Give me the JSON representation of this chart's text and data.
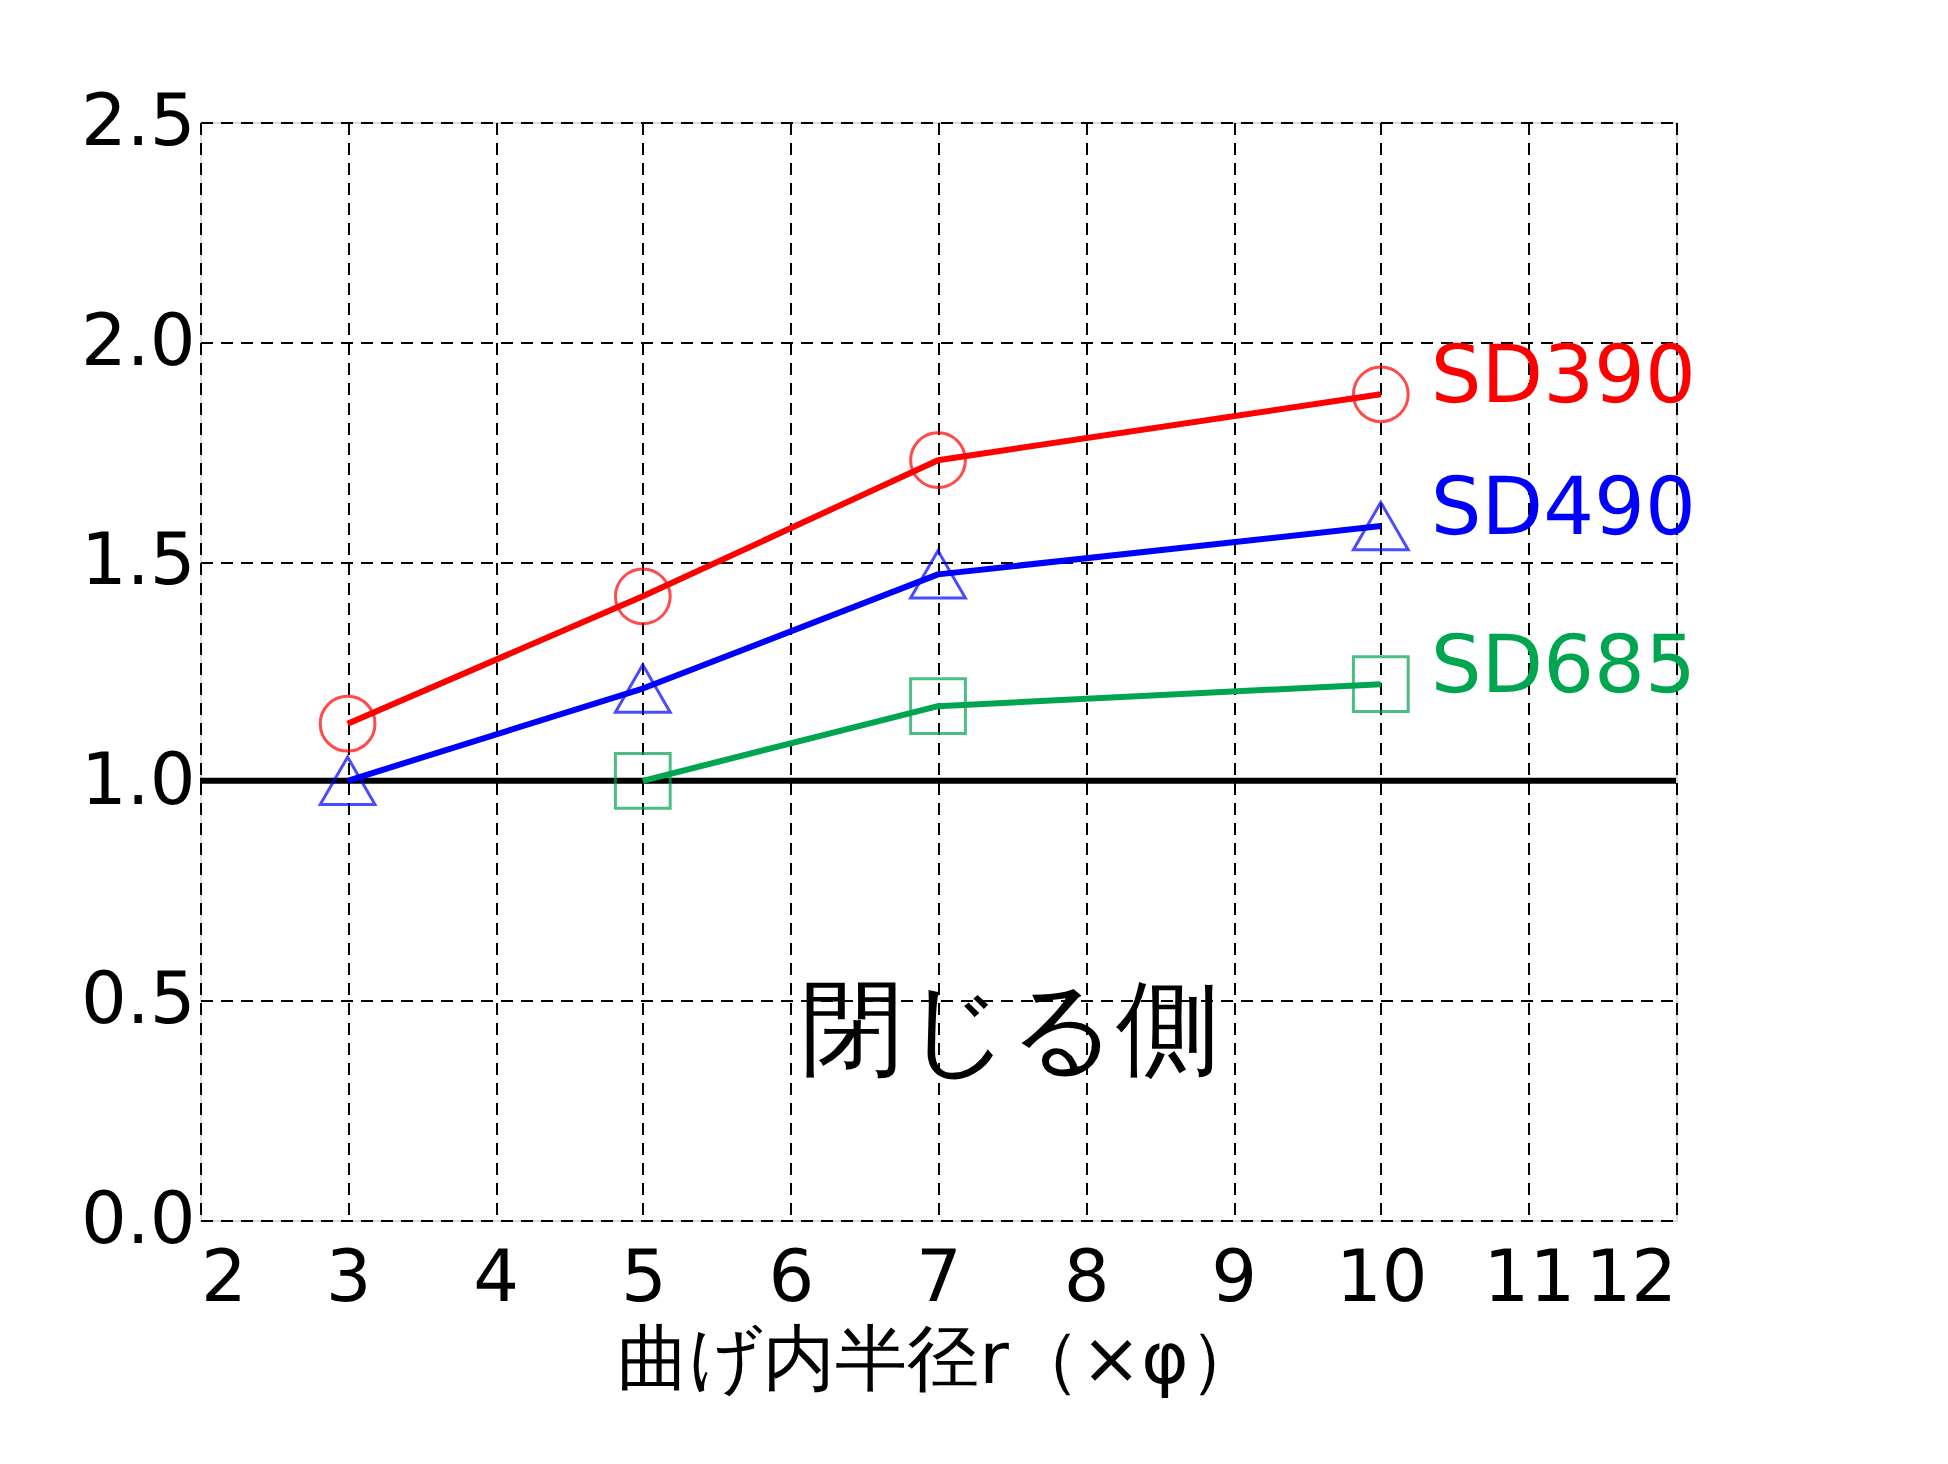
{
  "chart_data": {
    "type": "line",
    "xlabel": "曲げ内半径r（×φ）",
    "xlim": [
      2,
      12
    ],
    "xticks": [
      2,
      3,
      4,
      5,
      6,
      7,
      8,
      9,
      10,
      11,
      12
    ],
    "ylim": [
      0,
      2.5
    ],
    "yticks": [
      {
        "value": 0,
        "label": "0.0"
      },
      {
        "value": 0.5,
        "label": "0.5"
      },
      {
        "value": 1,
        "label": "1.0"
      },
      {
        "value": 1.5,
        "label": "1.5"
      },
      {
        "value": 2,
        "label": "2.0"
      },
      {
        "value": 2.5,
        "label": "2.5"
      }
    ],
    "grid": true,
    "legend": false,
    "line_style": "solid",
    "series": [
      {
        "name": "SD390",
        "color": "#ff0000",
        "marker": "circle",
        "x": [
          3,
          5,
          7,
          10
        ],
        "values": [
          1.13,
          1.42,
          1.73,
          1.88
        ]
      },
      {
        "name": "SD490",
        "color": "#0000ff",
        "marker": "triangle",
        "x": [
          3,
          5,
          7,
          10
        ],
        "values": [
          1.0,
          1.21,
          1.47,
          1.58
        ]
      },
      {
        "name": "SD685",
        "color": "#00a550",
        "marker": "square",
        "x": [
          5,
          7,
          10
        ],
        "values": [
          1.0,
          1.17,
          1.22
        ]
      }
    ],
    "ref_lines": [
      {
        "axis": "y",
        "value": 1.0,
        "color": "#000000"
      }
    ],
    "annotations": [
      "閉じる側"
    ]
  }
}
